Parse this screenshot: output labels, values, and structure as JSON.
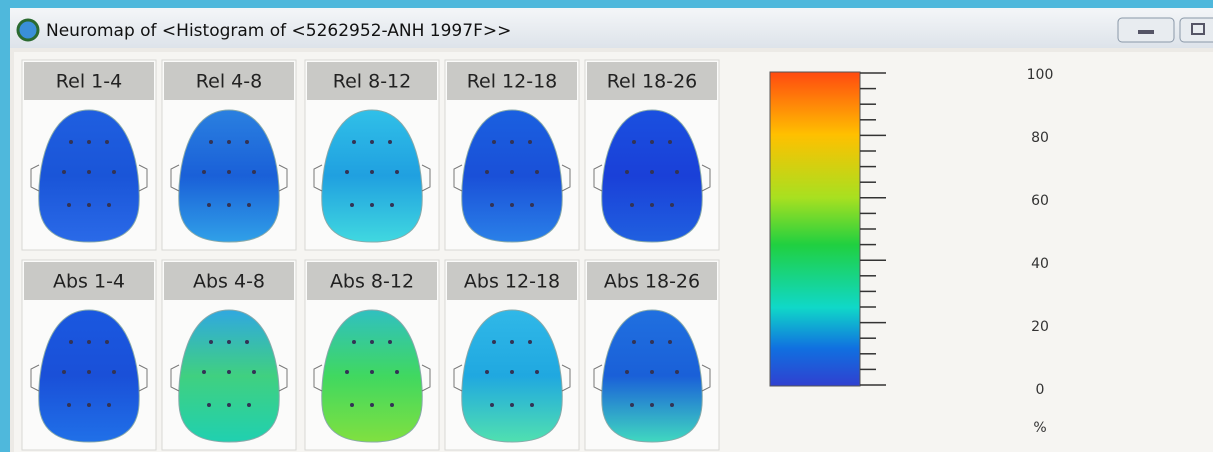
{
  "window": {
    "title": "Neuromap of <Histogram of <5262952-ANH 1997F>>"
  },
  "maps": [
    {
      "label": "Rel 1-4"
    },
    {
      "label": "Rel 4-8"
    },
    {
      "label": "Rel 8-12"
    },
    {
      "label": "Rel 12-18"
    },
    {
      "label": "Rel 18-26"
    },
    {
      "label": "Abs 1-4"
    },
    {
      "label": "Abs 4-8"
    },
    {
      "label": "Abs 8-12"
    },
    {
      "label": "Abs 12-18"
    },
    {
      "label": "Abs 18-26"
    }
  ],
  "scale": {
    "labels": [
      100,
      80,
      60,
      40,
      20,
      0
    ],
    "unit": "%"
  }
}
